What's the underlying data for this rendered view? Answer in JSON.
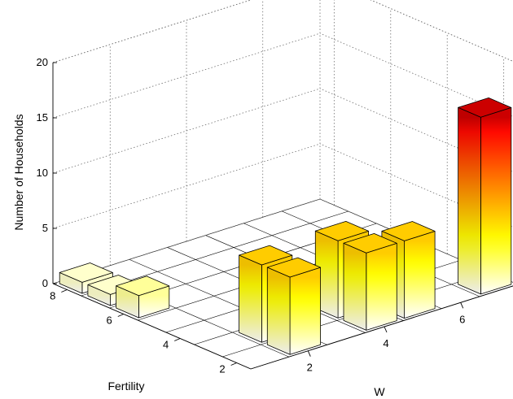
{
  "chart_data": {
    "type": "bar3d",
    "xlabel": "W",
    "ylabel": "Fertility",
    "zlabel": "Number of Households",
    "x_ticks": [
      "2",
      "4",
      "6"
    ],
    "y_ticks": [
      "2",
      "4",
      "6",
      "8"
    ],
    "z_ticks": [
      "0",
      "5",
      "10",
      "15",
      "20"
    ],
    "xlim": [
      0.5,
      7.5
    ],
    "ylim": [
      1.5,
      8.5
    ],
    "zlim": [
      0,
      20
    ],
    "grid": true,
    "colormap": [
      "#ffffff",
      "#ffff00",
      "#ff8000",
      "#ff0000",
      "#000000"
    ],
    "bars": [
      {
        "w": 1,
        "fertility": 8,
        "households": 1
      },
      {
        "w": 1,
        "fertility": 7,
        "households": 1
      },
      {
        "w": 1,
        "fertility": 6,
        "households": 2
      },
      {
        "w": 2,
        "fertility": 3,
        "households": 7
      },
      {
        "w": 2,
        "fertility": 2,
        "households": 7
      },
      {
        "w": 4,
        "fertility": 3,
        "households": 7
      },
      {
        "w": 4,
        "fertility": 2,
        "households": 7
      },
      {
        "w": 5,
        "fertility": 2,
        "households": 7
      },
      {
        "w": 7,
        "fertility": 2,
        "households": 16
      }
    ]
  }
}
